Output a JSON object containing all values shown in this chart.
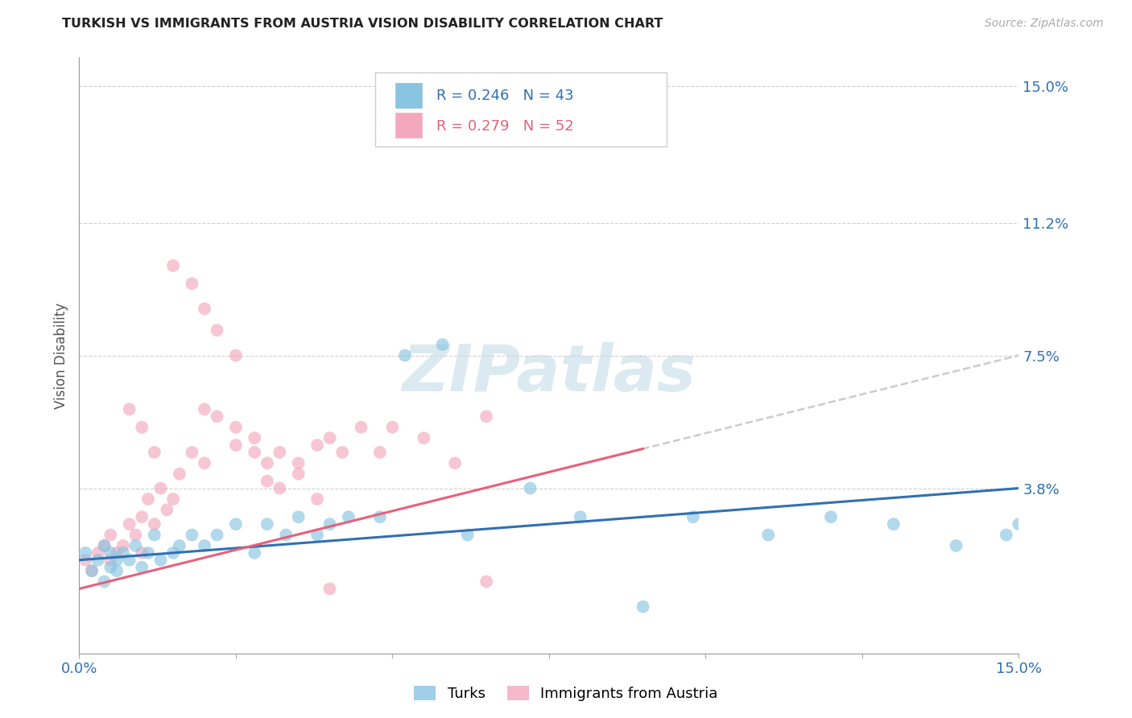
{
  "title": "TURKISH VS IMMIGRANTS FROM AUSTRIA VISION DISABILITY CORRELATION CHART",
  "source": "Source: ZipAtlas.com",
  "ylabel": "Vision Disability",
  "ylabel_right_ticks": [
    "15.0%",
    "11.2%",
    "7.5%",
    "3.8%"
  ],
  "ylabel_right_values": [
    0.15,
    0.112,
    0.075,
    0.038
  ],
  "xmin": 0.0,
  "xmax": 0.15,
  "ymin": -0.008,
  "ymax": 0.158,
  "watermark": "ZIPatlas",
  "turks_color": "#89c4e1",
  "austria_color": "#f4a8bf",
  "turks_line_color": "#3070b3",
  "austria_line_color": "#e8607a",
  "dashed_line_color": "#cccccc",
  "background_color": "#ffffff",
  "grid_color": "#d0d0d0",
  "turks_x": [
    0.001,
    0.002,
    0.003,
    0.004,
    0.004,
    0.005,
    0.005,
    0.006,
    0.006,
    0.007,
    0.008,
    0.009,
    0.01,
    0.011,
    0.012,
    0.013,
    0.015,
    0.016,
    0.018,
    0.02,
    0.022,
    0.025,
    0.028,
    0.03,
    0.033,
    0.035,
    0.038,
    0.04,
    0.043,
    0.048,
    0.052,
    0.058,
    0.062,
    0.072,
    0.08,
    0.09,
    0.098,
    0.11,
    0.12,
    0.13,
    0.14,
    0.148,
    0.15
  ],
  "turks_y": [
    0.02,
    0.015,
    0.018,
    0.012,
    0.022,
    0.016,
    0.02,
    0.018,
    0.015,
    0.02,
    0.018,
    0.022,
    0.016,
    0.02,
    0.025,
    0.018,
    0.02,
    0.022,
    0.025,
    0.022,
    0.025,
    0.028,
    0.02,
    0.028,
    0.025,
    0.03,
    0.025,
    0.028,
    0.03,
    0.03,
    0.075,
    0.078,
    0.025,
    0.038,
    0.03,
    0.005,
    0.03,
    0.025,
    0.03,
    0.028,
    0.022,
    0.025,
    0.028
  ],
  "austria_x": [
    0.001,
    0.002,
    0.003,
    0.004,
    0.005,
    0.005,
    0.006,
    0.007,
    0.008,
    0.009,
    0.01,
    0.01,
    0.011,
    0.012,
    0.013,
    0.014,
    0.015,
    0.016,
    0.018,
    0.02,
    0.015,
    0.018,
    0.02,
    0.022,
    0.025,
    0.025,
    0.028,
    0.03,
    0.032,
    0.035,
    0.038,
    0.04,
    0.042,
    0.045,
    0.048,
    0.05,
    0.055,
    0.06,
    0.065,
    0.02,
    0.022,
    0.025,
    0.028,
    0.008,
    0.01,
    0.012,
    0.03,
    0.032,
    0.035,
    0.038,
    0.04,
    0.065
  ],
  "austria_y": [
    0.018,
    0.015,
    0.02,
    0.022,
    0.018,
    0.025,
    0.02,
    0.022,
    0.028,
    0.025,
    0.02,
    0.03,
    0.035,
    0.028,
    0.038,
    0.032,
    0.035,
    0.042,
    0.048,
    0.045,
    0.1,
    0.095,
    0.088,
    0.082,
    0.075,
    0.05,
    0.052,
    0.045,
    0.048,
    0.045,
    0.05,
    0.052,
    0.048,
    0.055,
    0.048,
    0.055,
    0.052,
    0.045,
    0.058,
    0.06,
    0.058,
    0.055,
    0.048,
    0.06,
    0.055,
    0.048,
    0.04,
    0.038,
    0.042,
    0.035,
    0.01,
    0.012
  ],
  "legend_entries": [
    {
      "label": "R = 0.246   N = 43",
      "color": "#3070b3"
    },
    {
      "label": "R = 0.279   N = 52",
      "color": "#e8607a"
    }
  ],
  "bottom_legend": [
    "Turks",
    "Immigrants from Austria"
  ]
}
